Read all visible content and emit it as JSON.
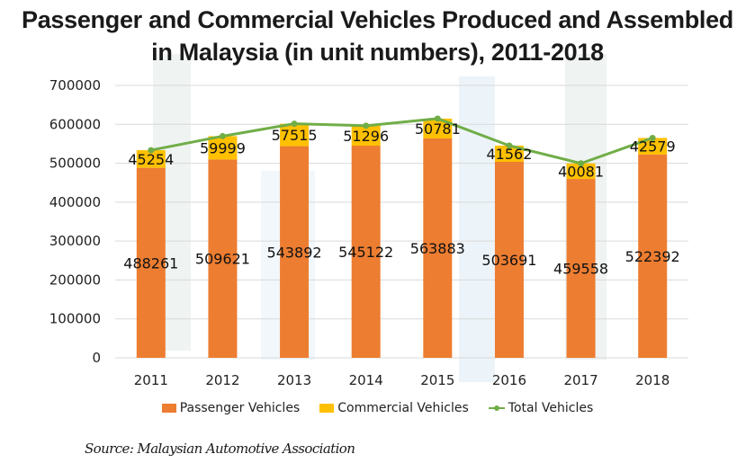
{
  "title_line1": "Passenger and Commercial Vehicles Produced and Assembled",
  "title_line2": "in Malaysia (in unit numbers), 2011-2018",
  "source": "Source: Malaysian Automotive Association",
  "colors": {
    "passenger": "#ed7d31",
    "commercial": "#ffc000",
    "total": "#70ad47",
    "grid": "#d9d9d9"
  },
  "chart_data": {
    "type": "bar",
    "stacked": true,
    "title": "Passenger and Commercial Vehicles Produced and Assembled in Malaysia (in unit numbers), 2011-2018",
    "xlabel": "",
    "ylabel": "",
    "categories": [
      "2011",
      "2012",
      "2013",
      "2014",
      "2015",
      "2016",
      "2017",
      "2018"
    ],
    "series": [
      {
        "name": "Passenger Vehicles",
        "type": "bar",
        "values": [
          488261,
          509621,
          543892,
          545122,
          563883,
          503691,
          459558,
          522392
        ]
      },
      {
        "name": "Commercial Vehicles",
        "type": "bar",
        "values": [
          45254,
          59999,
          57515,
          51296,
          50781,
          41562,
          40081,
          42579
        ]
      },
      {
        "name": "Total Vehicles",
        "type": "line",
        "values": [
          533515,
          569620,
          601407,
          596418,
          614664,
          545253,
          499639,
          564971
        ]
      }
    ],
    "ylim": [
      0,
      700000
    ],
    "yticks": [
      "0",
      "100000",
      "200000",
      "300000",
      "400000",
      "500000",
      "600000",
      "700000"
    ],
    "grid": true,
    "legend": [
      "Passenger Vehicles",
      "Commercial Vehicles",
      "Total Vehicles"
    ],
    "legend_position": "bottom"
  }
}
